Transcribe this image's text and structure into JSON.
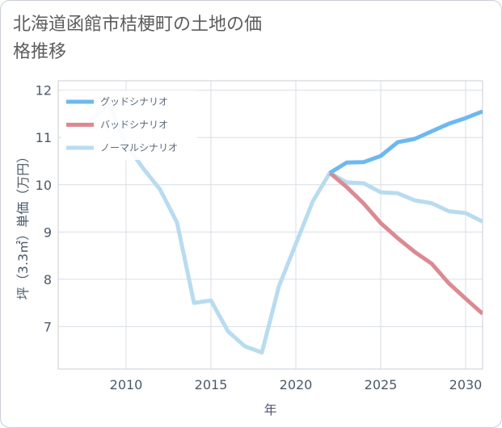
{
  "title": "北海道函館市桔梗町の土地の価格推移",
  "chart_data": {
    "type": "line",
    "title": "北海道函館市桔梗町の土地の価格推移",
    "xlabel": "年",
    "ylabel": "坪（3.3㎡）単価（万円）",
    "xlim": [
      2006,
      2031
    ],
    "ylim": [
      6.1,
      12.2
    ],
    "x_ticks": [
      2010,
      2015,
      2020,
      2025,
      2030
    ],
    "y_ticks": [
      7,
      8,
      9,
      10,
      11,
      12
    ],
    "grid": true,
    "legend_position": "top-left",
    "series": [
      {
        "name": "グッドシナリオ",
        "color": "#6db8f0",
        "x": [
          2022,
          2023,
          2024,
          2025,
          2026,
          2027,
          2028,
          2029,
          2030,
          2031
        ],
        "y": [
          10.25,
          10.47,
          10.48,
          10.61,
          10.9,
          10.97,
          11.13,
          11.29,
          11.41,
          11.55
        ]
      },
      {
        "name": "バッドシナリオ",
        "color": "#dc8a92",
        "x": [
          2022,
          2023,
          2024,
          2025,
          2026,
          2027,
          2028,
          2029,
          2030,
          2031
        ],
        "y": [
          10.25,
          9.95,
          9.6,
          9.19,
          8.87,
          8.58,
          8.33,
          7.92,
          7.59,
          7.27
        ]
      },
      {
        "name": "ノーマルシナリオ",
        "color": "#b8dcef",
        "x": [
          2008,
          2009,
          2010,
          2011,
          2012,
          2013,
          2014,
          2015,
          2016,
          2017,
          2018,
          2019,
          2020,
          2021,
          2022,
          2023,
          2024,
          2025,
          2026,
          2027,
          2028,
          2029,
          2030,
          2031
        ],
        "y": [
          11.4,
          11.7,
          10.85,
          10.35,
          9.9,
          9.2,
          7.5,
          7.55,
          6.9,
          6.58,
          6.45,
          7.85,
          8.75,
          9.65,
          10.25,
          10.05,
          10.03,
          9.84,
          9.82,
          9.67,
          9.61,
          9.44,
          9.4,
          9.22
        ]
      }
    ]
  }
}
